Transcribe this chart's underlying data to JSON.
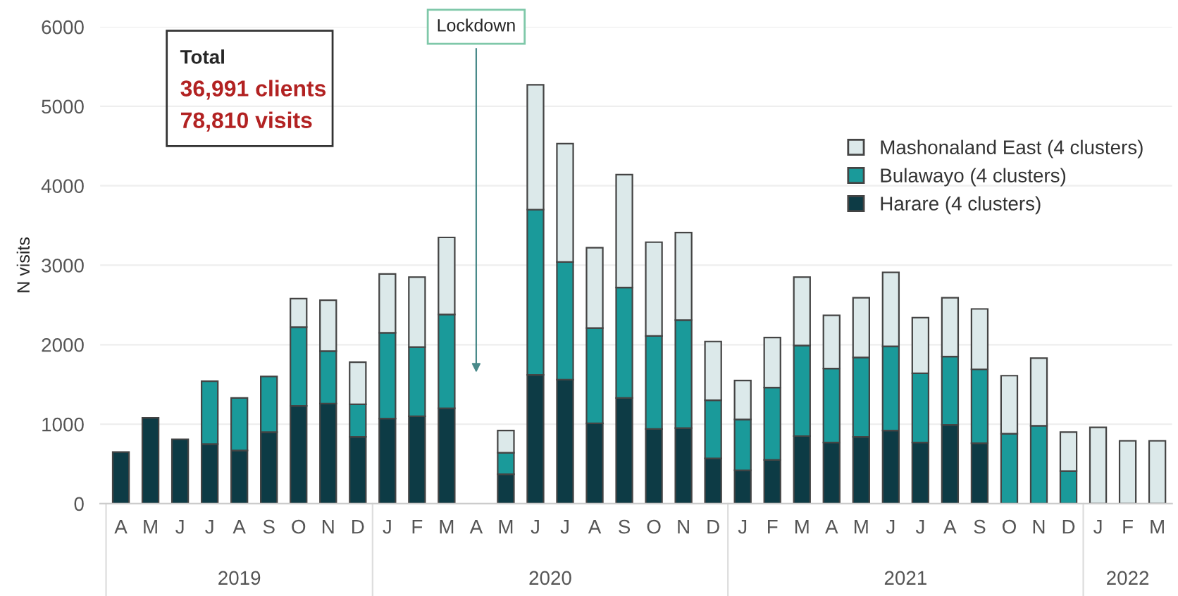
{
  "chart_data": {
    "type": "bar",
    "stacked": true,
    "ylabel": "N visits",
    "categories": [
      "A",
      "M",
      "J",
      "J",
      "A",
      "S",
      "O",
      "N",
      "D",
      "J",
      "F",
      "M",
      "A",
      "M",
      "J",
      "J",
      "A",
      "S",
      "O",
      "N",
      "D",
      "J",
      "F",
      "M",
      "A",
      "M",
      "J",
      "J",
      "A",
      "S",
      "O",
      "N",
      "D",
      "J",
      "F",
      "M"
    ],
    "series": [
      {
        "name": "Harare (4 clusters)",
        "color": "#0d3b45",
        "values": [
          650,
          1080,
          810,
          750,
          670,
          900,
          1230,
          1260,
          840,
          1070,
          1100,
          1200,
          null,
          370,
          1620,
          1560,
          1010,
          1330,
          940,
          950,
          570,
          420,
          550,
          850,
          770,
          840,
          920,
          770,
          990,
          760,
          null,
          null,
          null,
          null,
          null,
          null
        ]
      },
      {
        "name": "Bulawayo (4 clusters)",
        "color": "#1a9a9a",
        "values": [
          null,
          null,
          null,
          790,
          660,
          700,
          990,
          660,
          410,
          1080,
          870,
          1180,
          null,
          270,
          2080,
          1480,
          1200,
          1390,
          1170,
          1360,
          730,
          640,
          910,
          1140,
          930,
          1000,
          1060,
          870,
          860,
          930,
          880,
          980,
          410,
          null,
          null,
          null
        ]
      },
      {
        "name": "Mashonaland East (4 clusters)",
        "color": "#dce9ea",
        "values": [
          null,
          null,
          null,
          null,
          null,
          null,
          360,
          640,
          530,
          740,
          880,
          970,
          null,
          280,
          1570,
          1490,
          1010,
          1420,
          1180,
          1100,
          740,
          490,
          630,
          860,
          670,
          750,
          930,
          700,
          740,
          760,
          730,
          850,
          490,
          960,
          790,
          790
        ]
      }
    ],
    "ylim": [
      0,
      6000
    ],
    "yticks": [
      0,
      1000,
      2000,
      3000,
      4000,
      5000,
      6000
    ],
    "grid": "y",
    "legend": "top right",
    "annotations": [
      "Total",
      "36,991 clients",
      "78,810 visits",
      "Lockdown",
      "2019",
      "2020",
      "2021",
      "2022"
    ]
  }
}
